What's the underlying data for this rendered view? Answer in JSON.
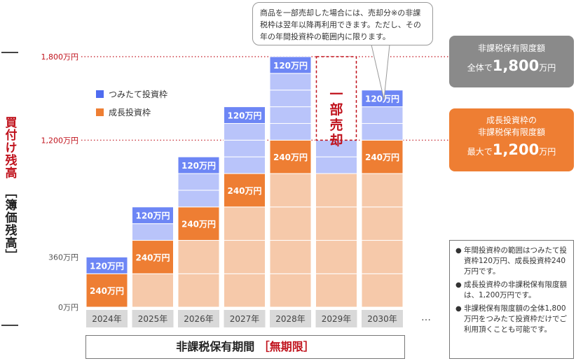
{
  "side_title": {
    "main": "買付け残高",
    "sub": "［簿価残高］"
  },
  "callout": {
    "text": "商品を一部売却した場合には、売却分※の非課税枠は翌年以降再利用できます。ただし、その年の年間投資枠の範囲内に限ります。"
  },
  "total_box": {
    "line1": "非課税保有限度額",
    "prefix": "全体で",
    "value": "1,800",
    "unit": "万円"
  },
  "growth_box": {
    "line1": "成長投資枠の",
    "line2": "非課税保有限度額",
    "prefix": "最大で",
    "value": "1,200",
    "unit": "万円"
  },
  "period": {
    "main": "非課税保有期間",
    "highlight": "［無期限］"
  },
  "notes": [
    "年間投資枠の範囲はつみたて投資枠120万円、成長投資枠240万円です。",
    "成長投資枠の非課税保有限度額は、1,200万円です。",
    "非課税保有限度額の全体1,800万円をつみたて投資枠だけでご利用頂くことも可能です。"
  ],
  "note_bullet": "●",
  "ellipsis": "…",
  "chart_data": {
    "type": "bar",
    "stacked": true,
    "categories": [
      "2024年",
      "2025年",
      "2026年",
      "2027年",
      "2028年",
      "2029年",
      "2030年"
    ],
    "ylim": [
      0,
      1800
    ],
    "ytick_labels": [
      {
        "value": 0,
        "label": "0万円"
      },
      {
        "value": 360,
        "label": "360万円"
      },
      {
        "value": 1200,
        "label": "1,200万円"
      },
      {
        "value": 1800,
        "label": "1,800万円"
      }
    ],
    "reference_lines": [
      1200,
      1800
    ],
    "legend": [
      {
        "name": "つみたて投資枠",
        "color": "#4f6cf0"
      },
      {
        "name": "成長投資枠",
        "color": "#ee7e33"
      }
    ],
    "colors": {
      "tsumitate_new": "#6d86f5",
      "tsumitate_held": "#b9c4fa",
      "growth_new": "#ee7e33",
      "growth_held": "#f6c9aa",
      "sold": "#c0121c",
      "xlabel_bg": "#d9d9d9",
      "ref_line": "#c0121c"
    },
    "bars": [
      {
        "year": "2024年",
        "growth_held": 0,
        "growth_new": 240,
        "tsumitate_held": 0,
        "tsumitate_new": 120,
        "growth_label": "240万円",
        "tsumitate_label": "120万円",
        "sold": 0,
        "sold_label": ""
      },
      {
        "year": "2025年",
        "growth_held": 240,
        "growth_new": 240,
        "tsumitate_held": 120,
        "tsumitate_new": 120,
        "growth_label": "240万円",
        "tsumitate_label": "120万円",
        "sold": 0,
        "sold_label": ""
      },
      {
        "year": "2026年",
        "growth_held": 480,
        "growth_new": 240,
        "tsumitate_held": 240,
        "tsumitate_new": 120,
        "growth_label": "240万円",
        "tsumitate_label": "120万円",
        "sold": 0,
        "sold_label": ""
      },
      {
        "year": "2027年",
        "growth_held": 720,
        "growth_new": 240,
        "tsumitate_held": 360,
        "tsumitate_new": 120,
        "growth_label": "240万円",
        "tsumitate_label": "120万円",
        "sold": 0,
        "sold_label": ""
      },
      {
        "year": "2028年",
        "growth_held": 960,
        "growth_new": 240,
        "tsumitate_held": 480,
        "tsumitate_new": 120,
        "growth_label": "240万円",
        "tsumitate_label": "120万円",
        "sold": 0,
        "sold_label": ""
      },
      {
        "year": "2029年",
        "growth_held": 960,
        "growth_new": 0,
        "tsumitate_held": 240,
        "tsumitate_new": 0,
        "growth_label": "",
        "tsumitate_label": "",
        "sold": 600,
        "sold_label": "一部売却"
      },
      {
        "year": "2030年",
        "growth_held": 960,
        "growth_new": 240,
        "tsumitate_held": 240,
        "tsumitate_new": 120,
        "growth_label": "240万円",
        "tsumitate_label": "120万円",
        "sold": 0,
        "sold_label": ""
      }
    ]
  }
}
